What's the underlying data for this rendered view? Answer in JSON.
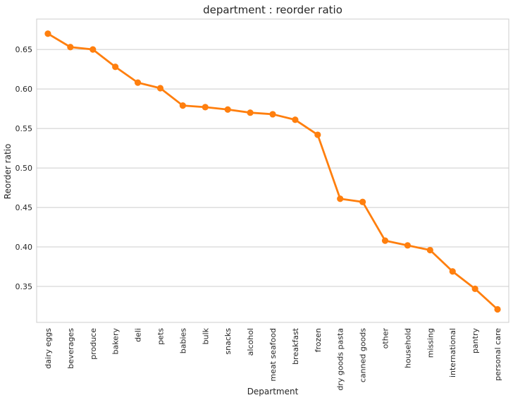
{
  "chart_data": {
    "type": "line",
    "title": "department : reorder ratio",
    "xlabel": "Department",
    "ylabel": "Reorder ratio",
    "categories": [
      "dairy eggs",
      "beverages",
      "produce",
      "bakery",
      "deli",
      "pets",
      "babies",
      "bulk",
      "snacks",
      "alcohol",
      "meat seafood",
      "breakfast",
      "frozen",
      "dry goods pasta",
      "canned goods",
      "other",
      "household",
      "missing",
      "international",
      "pantry",
      "personal care"
    ],
    "values": [
      0.67,
      0.653,
      0.65,
      0.628,
      0.608,
      0.601,
      0.579,
      0.577,
      0.574,
      0.57,
      0.568,
      0.561,
      0.542,
      0.461,
      0.457,
      0.408,
      0.402,
      0.396,
      0.369,
      0.347,
      0.321
    ],
    "yticks": [
      "0.35",
      "0.40",
      "0.45",
      "0.50",
      "0.55",
      "0.60",
      "0.65"
    ],
    "ylim": [
      0.3045,
      0.6885
    ],
    "grid": "y",
    "color": "#ff7f0e"
  }
}
